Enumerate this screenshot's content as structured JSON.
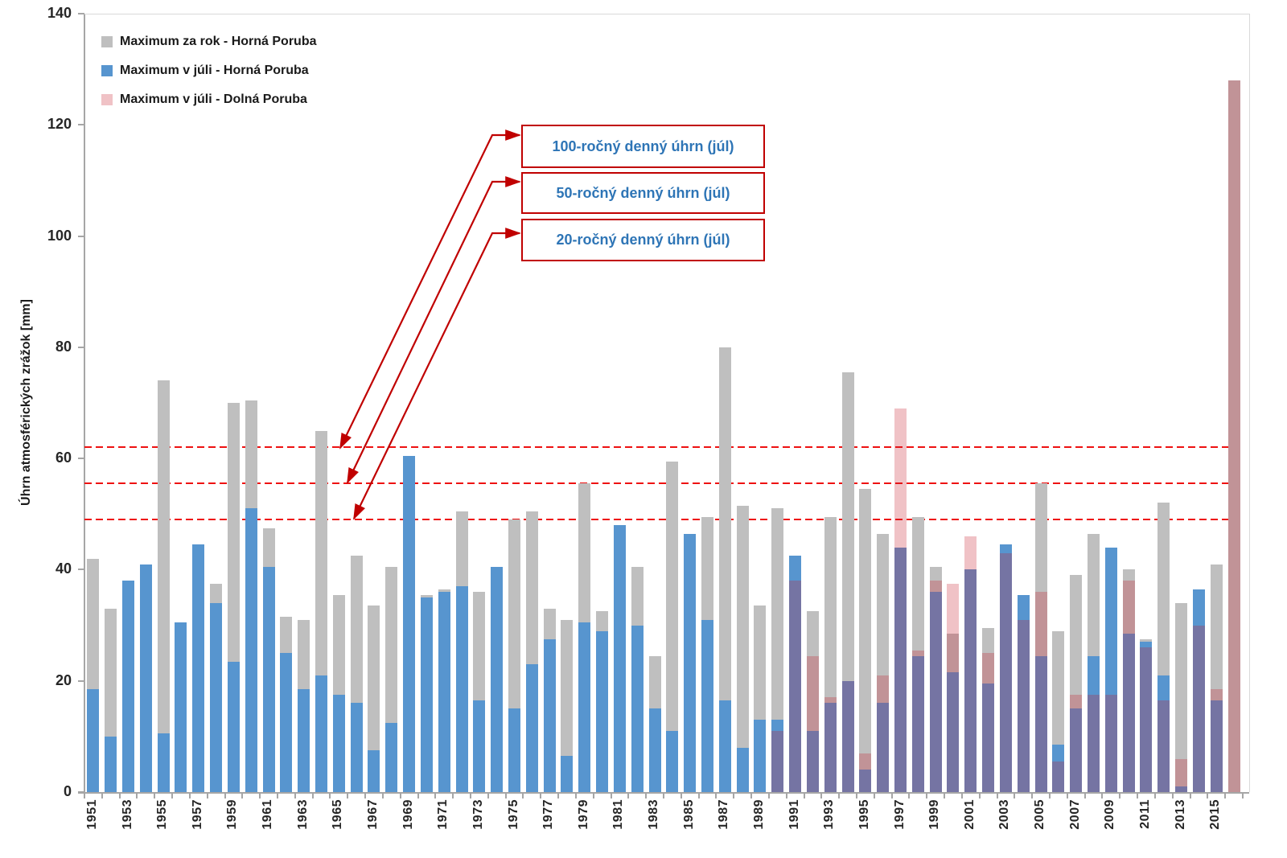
{
  "chart_data": {
    "type": "bar",
    "title": "",
    "xlabel": "",
    "ylabel": "Úhrn atmosférických zrážok [mm]",
    "ylim": [
      0,
      140
    ],
    "ytick_step": 20,
    "yticks": [
      0,
      20,
      40,
      60,
      80,
      100,
      120,
      140
    ],
    "grid": "off",
    "legend_position": "top-left",
    "years": [
      1951,
      1952,
      1953,
      1954,
      1955,
      1956,
      1957,
      1958,
      1959,
      1960,
      1961,
      1962,
      1963,
      1964,
      1965,
      1966,
      1967,
      1968,
      1969,
      1970,
      1971,
      1972,
      1973,
      1974,
      1975,
      1976,
      1977,
      1978,
      1979,
      1980,
      1981,
      1982,
      1983,
      1984,
      1985,
      1986,
      1987,
      1988,
      1989,
      1990,
      1991,
      1992,
      1993,
      1994,
      1995,
      1996,
      1997,
      1998,
      1999,
      2000,
      2001,
      2002,
      2003,
      2004,
      2005,
      2006,
      2007,
      2008,
      2009,
      2010,
      2011,
      2012,
      2013,
      2014,
      2015,
      2016
    ],
    "series": [
      {
        "name": "Maximum za rok - Horná Poruba",
        "color": "#bfbfbf",
        "values": [
          42,
          33,
          38,
          41,
          74,
          30.5,
          44.5,
          37.5,
          70,
          70.5,
          47.5,
          31.5,
          31,
          65,
          35.5,
          42.5,
          33.5,
          40.5,
          60.5,
          35.5,
          36.5,
          50.5,
          36,
          40.5,
          49,
          50.5,
          33,
          31,
          55.5,
          32.5,
          48,
          40.5,
          24.5,
          59.5,
          46.5,
          49.5,
          80,
          51.5,
          33.5,
          51,
          42.5,
          32.5,
          49.5,
          75.5,
          54.5,
          46.5,
          44,
          49.5,
          40.5,
          28.5,
          40,
          29.5,
          44.5,
          35.5,
          55.5,
          29,
          39,
          46.5,
          44,
          40,
          27.5,
          52,
          34,
          36.5,
          41,
          128
        ]
      },
      {
        "name": "Maximum v júli - Horná Poruba",
        "color": "#5795cf",
        "values": [
          18.5,
          10,
          38,
          41,
          10.5,
          30.5,
          44.5,
          34,
          23.5,
          51,
          40.5,
          25,
          18.5,
          21,
          17.5,
          16,
          7.5,
          12.5,
          60.5,
          35,
          36,
          37,
          16.5,
          40.5,
          15,
          23,
          27.5,
          6.5,
          30.5,
          29,
          48,
          30,
          15,
          11,
          46.5,
          31,
          16.5,
          8,
          13,
          13,
          42.5,
          11,
          16,
          20,
          4,
          16,
          44,
          24.5,
          36,
          21.5,
          40,
          19.5,
          44.5,
          35.5,
          24.5,
          8.5,
          15,
          24.5,
          44,
          28.5,
          27,
          21,
          1,
          36.5,
          16.5,
          null
        ]
      },
      {
        "name": "Maximum v júli - Dolná Poruba",
        "color": "rgba(198,30,45,0.27)",
        "values": [
          null,
          null,
          null,
          null,
          null,
          null,
          null,
          null,
          null,
          null,
          null,
          null,
          null,
          null,
          null,
          null,
          null,
          null,
          null,
          null,
          null,
          null,
          null,
          null,
          null,
          null,
          null,
          null,
          null,
          null,
          null,
          null,
          null,
          null,
          null,
          null,
          null,
          null,
          null,
          11,
          38,
          24.5,
          17,
          20,
          7,
          21,
          69,
          25.5,
          38,
          37.5,
          46,
          25,
          43,
          31,
          36,
          5.5,
          17.5,
          17.5,
          17.5,
          38,
          26,
          16.5,
          6,
          30,
          18.5,
          128
        ]
      }
    ],
    "reference_lines": [
      {
        "label": "100-ročný denný úhrn (júl)",
        "value": 62
      },
      {
        "label": "50-ročný denný úhrn (júl)",
        "value": 55.5
      },
      {
        "label": "20-ročný denný úhrn (júl)",
        "value": 49
      }
    ]
  },
  "colors": {
    "axis": "#a6a6a6",
    "refline_red": "#ee1111",
    "annotation_border": "#c00000",
    "annotation_text": "#2e75b6",
    "arrow": "#c00000",
    "tick_text": "#262626"
  }
}
